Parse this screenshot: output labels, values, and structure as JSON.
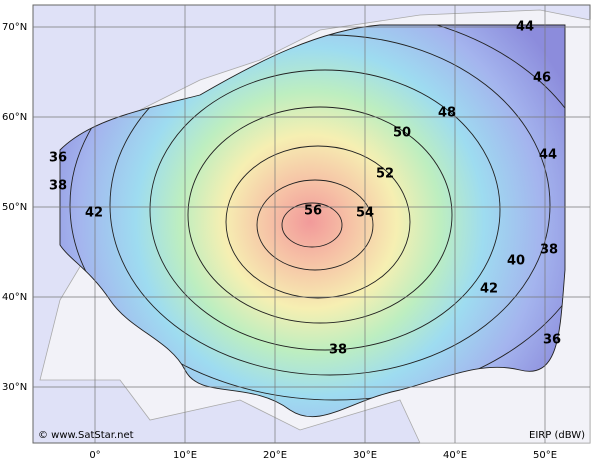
{
  "map": {
    "latitudes": [
      "70°N",
      "60°N",
      "50°N",
      "40°N",
      "30°N"
    ],
    "longitudes": [
      "0°",
      "10°E",
      "20°E",
      "30°E",
      "40°E",
      "50°E"
    ],
    "contour_labels": [
      44,
      46,
      48,
      50,
      52,
      54,
      56,
      44,
      36,
      38,
      42,
      38,
      40,
      42,
      36,
      38
    ],
    "credit": "© www.SatStar.net",
    "legend": "EIRP (dBW)"
  }
}
